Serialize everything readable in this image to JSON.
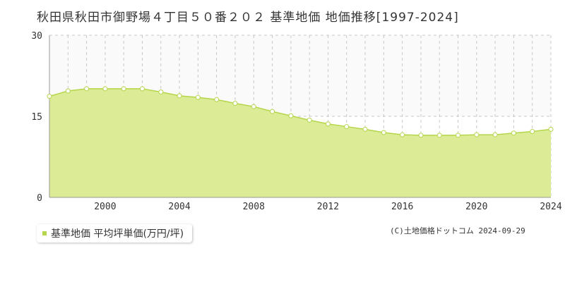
{
  "title": "秋田県秋田市御野場４丁目５０番２０２ 基準地価 地価推移[1997-2024]",
  "legend_label": "基準地価 平均坪単価(万円/坪)",
  "copyright": "(C)土地価格ドットコム 2024-09-29",
  "colors": {
    "fill": "#dbeb96",
    "line": "#b5d64a",
    "point_stroke": "#b5d64a",
    "grid": "#c8c8c8",
    "upper_band": "#fafafa"
  },
  "chart_data": {
    "type": "area",
    "x": [
      1997,
      1998,
      1999,
      2000,
      2001,
      2002,
      2003,
      2004,
      2005,
      2006,
      2007,
      2008,
      2009,
      2010,
      2011,
      2012,
      2013,
      2014,
      2015,
      2016,
      2017,
      2018,
      2019,
      2020,
      2021,
      2022,
      2023,
      2024
    ],
    "series": [
      {
        "name": "基準地価 平均坪単価(万円/坪)",
        "values": [
          18.7,
          19.7,
          20.1,
          20.1,
          20.1,
          20.1,
          19.5,
          18.8,
          18.5,
          18.1,
          17.4,
          16.8,
          15.9,
          15.1,
          14.3,
          13.6,
          13.1,
          12.6,
          12.0,
          11.6,
          11.5,
          11.5,
          11.5,
          11.6,
          11.6,
          11.9,
          12.2,
          12.6
        ]
      }
    ],
    "xticks": [
      2000,
      2004,
      2008,
      2012,
      2016,
      2020,
      2024
    ],
    "yticks": [
      0,
      15,
      30
    ],
    "xlim": [
      1997,
      2024
    ],
    "ylim": [
      0,
      30
    ],
    "grid": true
  }
}
